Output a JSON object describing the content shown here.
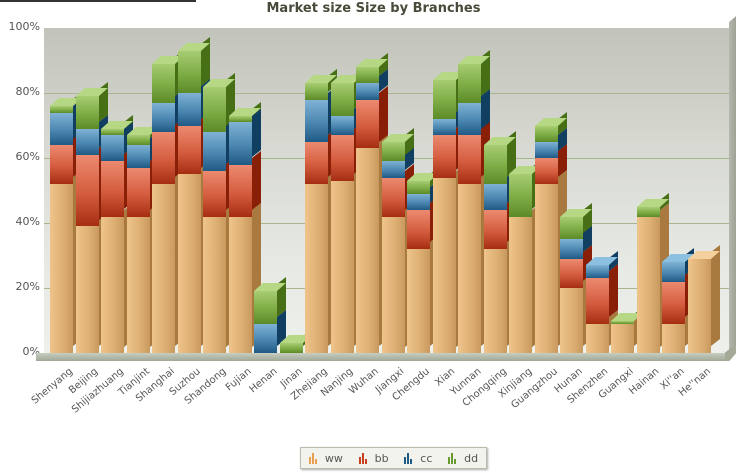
{
  "chart_data": {
    "type": "bar",
    "stacked": true,
    "three_d": true,
    "title": "Market size Size by Branches",
    "xlabel": "",
    "ylabel": "",
    "ylim": [
      0,
      100
    ],
    "y_ticks": [
      "0%",
      "20%",
      "40%",
      "60%",
      "80%",
      "100%"
    ],
    "y_tick_values": [
      0,
      20,
      40,
      60,
      80,
      100
    ],
    "grid": true,
    "legend_position": "bottom",
    "categories": [
      "Shenyang",
      "Beijing",
      "Shijiazhuang",
      "Tianjint",
      "Shanghai",
      "Suzhou",
      "Shandong",
      "Fujian",
      "Henan",
      "Jinan",
      "Zhejiang",
      "Nanjing",
      "Wuhan",
      "Jiangxi",
      "Chengdu",
      "Xian",
      "Yunnan",
      "Chongqing",
      "Xinjiang",
      "Guangzhou",
      "Hunan",
      "Shenzhen",
      "Guangxi",
      "Hainan",
      "Xi''an",
      "He''nan"
    ],
    "series": [
      {
        "name": "ww",
        "color": "#dcae72",
        "values": [
          52,
          39,
          42,
          42,
          52,
          55,
          42,
          42,
          0,
          0,
          52,
          53,
          63,
          42,
          32,
          54,
          52,
          32,
          42,
          52,
          20,
          9,
          9,
          42,
          9,
          29
        ]
      },
      {
        "name": "bb",
        "color": "#d45c3e",
        "values": [
          12,
          22,
          17,
          15,
          16,
          15,
          14,
          16,
          0,
          0,
          13,
          14,
          15,
          12,
          12,
          13,
          15,
          12,
          0,
          8,
          9,
          14,
          0,
          0,
          13,
          0
        ]
      },
      {
        "name": "cc",
        "color": "#4a86b0",
        "values": [
          10,
          8,
          8,
          7,
          9,
          10,
          12,
          13,
          9,
          0,
          13,
          6,
          5,
          5,
          5,
          5,
          10,
          8,
          0,
          5,
          6,
          4,
          0,
          0,
          6,
          0
        ]
      },
      {
        "name": "dd",
        "color": "#7dac45",
        "values": [
          2,
          10,
          2,
          3,
          12,
          13,
          14,
          2,
          10,
          3,
          5,
          10,
          5,
          6,
          4,
          12,
          12,
          12,
          13,
          5,
          7,
          0,
          1,
          3,
          0,
          0
        ]
      }
    ]
  },
  "legend": {
    "items": [
      {
        "label": "ww",
        "color": "#e8a050"
      },
      {
        "label": "bb",
        "color": "#c8401e"
      },
      {
        "label": "cc",
        "color": "#1f5a84"
      },
      {
        "label": "dd",
        "color": "#6a9a30"
      }
    ]
  }
}
